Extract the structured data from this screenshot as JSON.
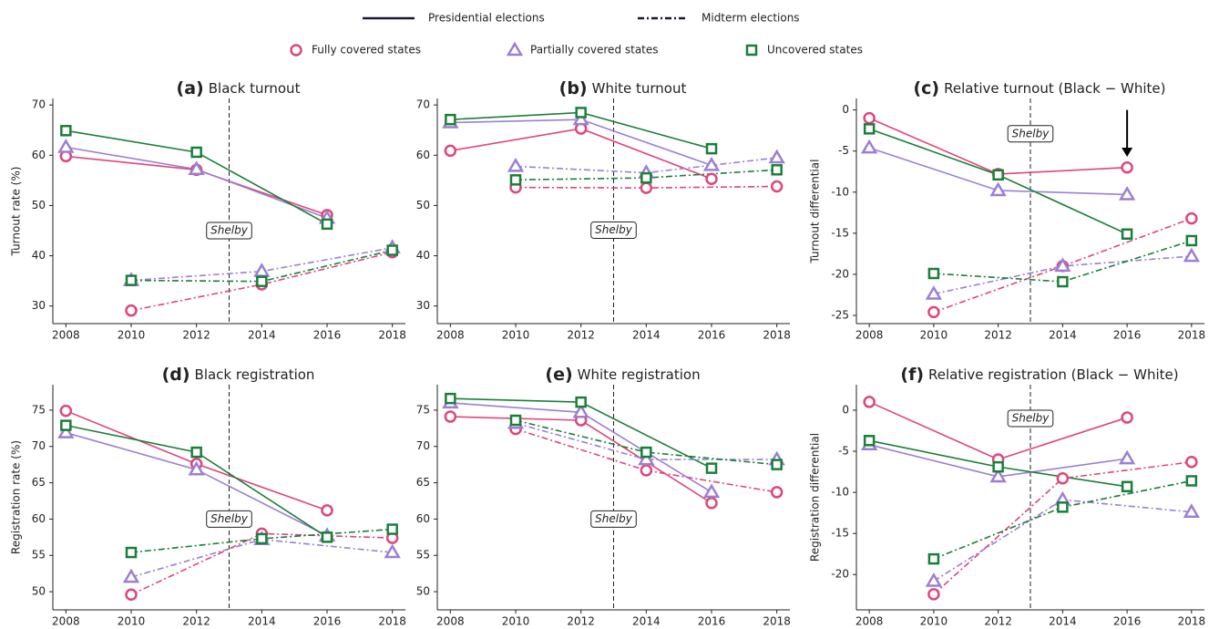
{
  "legend": {
    "line_styles": [
      {
        "label": "Presidential elections",
        "dash": "solid"
      },
      {
        "label": "Midterm elections",
        "dash": "dashdot"
      }
    ],
    "markers": [
      {
        "label": "Fully covered states",
        "marker": "circle",
        "color": "#e0457b"
      },
      {
        "label": "Partially covered states",
        "marker": "triangle",
        "color": "#9b7fd4"
      },
      {
        "label": "Uncovered states",
        "marker": "square",
        "color": "#1a7f3a"
      }
    ]
  },
  "chart_data": [
    {
      "type": "line",
      "panel_label": "(a)",
      "title": "Black turnout",
      "ylabel": "Turnout rate (%)",
      "xlim": [
        2007.6,
        2018.4
      ],
      "xticks": [
        2008,
        2010,
        2012,
        2014,
        2016,
        2018
      ],
      "ylim": [
        26.5,
        71.3
      ],
      "yticks": [
        30,
        40,
        50,
        60,
        70
      ],
      "vline": 2013,
      "annotation": {
        "text": "Shelby",
        "x": 2013,
        "y": 45
      },
      "series": [
        {
          "marker": "circle",
          "color": "#e0457b",
          "dash": "solid",
          "x": [
            2008,
            2012,
            2016
          ],
          "values": [
            59.8,
            57.1,
            48.1
          ]
        },
        {
          "marker": "triangle",
          "color": "#9b7fd4",
          "dash": "solid",
          "x": [
            2008,
            2012,
            2016
          ],
          "values": [
            61.6,
            57.2,
            47.5
          ]
        },
        {
          "marker": "square",
          "color": "#1a7f3a",
          "dash": "solid",
          "x": [
            2008,
            2012,
            2016
          ],
          "values": [
            64.9,
            60.6,
            46.3
          ]
        },
        {
          "marker": "circle",
          "color": "#e0457b",
          "dash": "dashdot",
          "x": [
            2010,
            2014,
            2018
          ],
          "values": [
            29.1,
            34.3,
            40.7
          ]
        },
        {
          "marker": "triangle",
          "color": "#9b7fd4",
          "dash": "dashdot",
          "x": [
            2010,
            2014,
            2018
          ],
          "values": [
            35.1,
            36.9,
            41.6
          ]
        },
        {
          "marker": "square",
          "color": "#1a7f3a",
          "dash": "dashdot",
          "x": [
            2010,
            2014,
            2018
          ],
          "values": [
            35.1,
            34.9,
            41.1
          ]
        }
      ]
    },
    {
      "type": "line",
      "panel_label": "(b)",
      "title": "White turnout",
      "xlim": [
        2007.6,
        2018.4
      ],
      "xticks": [
        2008,
        2010,
        2012,
        2014,
        2016,
        2018
      ],
      "ylim": [
        26.5,
        71.3
      ],
      "yticks": [
        30,
        40,
        50,
        60,
        70
      ],
      "vline": 2013,
      "annotation": {
        "text": "Shelby",
        "x": 2013,
        "y": 45.1
      },
      "series": [
        {
          "marker": "circle",
          "color": "#e0457b",
          "dash": "solid",
          "x": [
            2008,
            2012,
            2016
          ],
          "values": [
            60.9,
            65.3,
            55.3
          ]
        },
        {
          "marker": "triangle",
          "color": "#9b7fd4",
          "dash": "solid",
          "x": [
            2008,
            2012,
            2016
          ],
          "values": [
            66.5,
            67.1,
            58.0
          ]
        },
        {
          "marker": "square",
          "color": "#1a7f3a",
          "dash": "solid",
          "x": [
            2008,
            2012,
            2016
          ],
          "values": [
            67.1,
            68.5,
            61.3
          ]
        },
        {
          "marker": "circle",
          "color": "#e0457b",
          "dash": "dashdot",
          "x": [
            2010,
            2014,
            2018
          ],
          "values": [
            53.6,
            53.5,
            53.8
          ]
        },
        {
          "marker": "triangle",
          "color": "#9b7fd4",
          "dash": "dashdot",
          "x": [
            2010,
            2014,
            2018
          ],
          "values": [
            57.8,
            56.5,
            59.5
          ]
        },
        {
          "marker": "square",
          "color": "#1a7f3a",
          "dash": "dashdot",
          "x": [
            2010,
            2014,
            2018
          ],
          "values": [
            55.1,
            55.5,
            57.1
          ]
        }
      ]
    },
    {
      "type": "line",
      "panel_label": "(c)",
      "title": "Relative turnout (Black − White)",
      "ylabel": "Turnout differential",
      "xlim": [
        2007.6,
        2018.4
      ],
      "xticks": [
        2008,
        2010,
        2012,
        2014,
        2016,
        2018
      ],
      "ylim": [
        -26,
        1.4
      ],
      "yticks": [
        {
          "value": -25,
          "label": "-25"
        },
        {
          "value": -20,
          "label": "-20"
        },
        {
          "value": -15,
          "label": "-15"
        },
        {
          "value": -10,
          "label": "-10"
        },
        {
          "value": -5,
          "label": "-5"
        },
        0
      ],
      "vline": 2013,
      "annotation": {
        "text": "Shelby",
        "x": 2013,
        "y": -2.9
      },
      "arrow": {
        "x": 2016,
        "y_start": 0,
        "y_end": -5.7
      },
      "series": [
        {
          "marker": "circle",
          "color": "#e0457b",
          "dash": "solid",
          "x": [
            2008,
            2012,
            2016
          ],
          "values": [
            -1.0,
            -7.8,
            -7.0
          ]
        },
        {
          "marker": "triangle",
          "color": "#9b7fd4",
          "dash": "solid",
          "x": [
            2008,
            2012,
            2016
          ],
          "values": [
            -4.6,
            -9.8,
            -10.3
          ]
        },
        {
          "marker": "square",
          "color": "#1a7f3a",
          "dash": "solid",
          "x": [
            2008,
            2012,
            2016
          ],
          "values": [
            -2.3,
            -7.9,
            -15.1
          ]
        },
        {
          "marker": "circle",
          "color": "#e0457b",
          "dash": "dashdot",
          "x": [
            2010,
            2014,
            2018
          ],
          "values": [
            -24.6,
            -19.0,
            -13.2
          ]
        },
        {
          "marker": "triangle",
          "color": "#9b7fd4",
          "dash": "dashdot",
          "x": [
            2010,
            2014,
            2018
          ],
          "values": [
            -22.4,
            -19.0,
            -17.8
          ]
        },
        {
          "marker": "square",
          "color": "#1a7f3a",
          "dash": "dashdot",
          "x": [
            2010,
            2014,
            2018
          ],
          "values": [
            -19.9,
            -20.9,
            -15.9
          ]
        }
      ]
    },
    {
      "type": "line",
      "panel_label": "(d)",
      "title": "Black registration",
      "ylabel": "Registration rate (%)",
      "xlim": [
        2007.6,
        2018.4
      ],
      "xticks": [
        2008,
        2010,
        2012,
        2014,
        2016,
        2018
      ],
      "ylim": [
        47.5,
        78.5
      ],
      "yticks": [
        50,
        55,
        60,
        65,
        70,
        75
      ],
      "vline": 2013,
      "annotation": {
        "text": "Shelby",
        "x": 2013,
        "y": 60
      },
      "series": [
        {
          "marker": "circle",
          "color": "#e0457b",
          "dash": "solid",
          "x": [
            2008,
            2012,
            2016
          ],
          "values": [
            74.9,
            67.6,
            61.2
          ]
        },
        {
          "marker": "triangle",
          "color": "#9b7fd4",
          "dash": "solid",
          "x": [
            2008,
            2012,
            2016
          ],
          "values": [
            71.9,
            66.8,
            57.7
          ]
        },
        {
          "marker": "square",
          "color": "#1a7f3a",
          "dash": "solid",
          "x": [
            2008,
            2012,
            2016
          ],
          "values": [
            72.9,
            69.2,
            57.5
          ]
        },
        {
          "marker": "circle",
          "color": "#e0457b",
          "dash": "dashdot",
          "x": [
            2010,
            2014,
            2018
          ],
          "values": [
            49.6,
            58.0,
            57.4
          ]
        },
        {
          "marker": "triangle",
          "color": "#9b7fd4",
          "dash": "dashdot",
          "x": [
            2010,
            2014,
            2018
          ],
          "values": [
            52.0,
            57.2,
            55.4
          ]
        },
        {
          "marker": "square",
          "color": "#1a7f3a",
          "dash": "dashdot",
          "x": [
            2010,
            2014,
            2018
          ],
          "values": [
            55.4,
            57.3,
            58.6
          ]
        }
      ]
    },
    {
      "type": "line",
      "panel_label": "(e)",
      "title": "White registration",
      "xlim": [
        2007.6,
        2018.4
      ],
      "xticks": [
        2008,
        2010,
        2012,
        2014,
        2016,
        2018
      ],
      "ylim": [
        47.5,
        78.5
      ],
      "yticks": [
        50,
        55,
        60,
        65,
        70,
        75
      ],
      "vline": 2013,
      "annotation": {
        "text": "Shelby",
        "x": 2013,
        "y": 60
      },
      "series": [
        {
          "marker": "circle",
          "color": "#e0457b",
          "dash": "solid",
          "x": [
            2008,
            2012,
            2016
          ],
          "values": [
            74.1,
            73.6,
            62.2
          ]
        },
        {
          "marker": "triangle",
          "color": "#9b7fd4",
          "dash": "solid",
          "x": [
            2008,
            2012,
            2016
          ],
          "values": [
            76.0,
            74.7,
            63.7
          ]
        },
        {
          "marker": "square",
          "color": "#1a7f3a",
          "dash": "solid",
          "x": [
            2008,
            2012,
            2016
          ],
          "values": [
            76.6,
            76.1,
            67.0
          ]
        },
        {
          "marker": "circle",
          "color": "#e0457b",
          "dash": "dashdot",
          "x": [
            2010,
            2014,
            2018
          ],
          "values": [
            72.4,
            66.7,
            63.7
          ]
        },
        {
          "marker": "triangle",
          "color": "#9b7fd4",
          "dash": "dashdot",
          "x": [
            2010,
            2014,
            2018
          ],
          "values": [
            73.2,
            68.2,
            68.2
          ]
        },
        {
          "marker": "square",
          "color": "#1a7f3a",
          "dash": "dashdot",
          "x": [
            2010,
            2014,
            2018
          ],
          "values": [
            73.6,
            69.2,
            67.5
          ]
        }
      ]
    },
    {
      "type": "line",
      "panel_label": "(f)",
      "title": "Relative registration (Black − White)",
      "ylabel": "Registration differential",
      "xlim": [
        2007.6,
        2018.4
      ],
      "xticks": [
        2008,
        2010,
        2012,
        2014,
        2016,
        2018
      ],
      "ylim": [
        -24.3,
        3.1
      ],
      "yticks": [
        {
          "value": -20,
          "label": "-20"
        },
        {
          "value": -15,
          "label": "-15"
        },
        {
          "value": -10,
          "label": "-10"
        },
        {
          "value": -5,
          "label": "-5"
        },
        0
      ],
      "vline": 2013,
      "annotation": {
        "text": "Shelby",
        "x": 2013,
        "y": -1
      },
      "series": [
        {
          "marker": "circle",
          "color": "#e0457b",
          "dash": "solid",
          "x": [
            2008,
            2012,
            2016
          ],
          "values": [
            1.0,
            -6.0,
            -0.9
          ]
        },
        {
          "marker": "triangle",
          "color": "#9b7fd4",
          "dash": "solid",
          "x": [
            2008,
            2012,
            2016
          ],
          "values": [
            -4.2,
            -8.1,
            -5.9
          ]
        },
        {
          "marker": "square",
          "color": "#1a7f3a",
          "dash": "solid",
          "x": [
            2008,
            2012,
            2016
          ],
          "values": [
            -3.7,
            -6.9,
            -9.3
          ]
        },
        {
          "marker": "circle",
          "color": "#e0457b",
          "dash": "dashdot",
          "x": [
            2010,
            2014,
            2018
          ],
          "values": [
            -22.4,
            -8.3,
            -6.3
          ]
        },
        {
          "marker": "triangle",
          "color": "#9b7fd4",
          "dash": "dashdot",
          "x": [
            2010,
            2014,
            2018
          ],
          "values": [
            -20.8,
            -10.9,
            -12.4
          ]
        },
        {
          "marker": "square",
          "color": "#1a7f3a",
          "dash": "dashdot",
          "x": [
            2010,
            2014,
            2018
          ],
          "values": [
            -18.1,
            -11.8,
            -8.6
          ]
        }
      ]
    }
  ]
}
